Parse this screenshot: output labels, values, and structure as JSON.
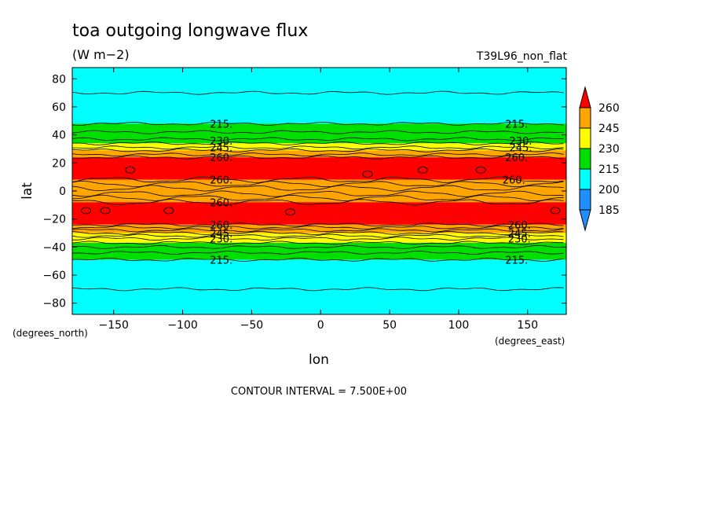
{
  "chart_data": {
    "type": "heatmap",
    "title": "toa outgoing longwave flux",
    "units": "(W m−2)",
    "run_label": "T39L96_non_flat",
    "xlabel": "lon",
    "ylabel": "lat",
    "x_unit_label": "(degrees_east)",
    "y_unit_label": "(degrees_north)",
    "xlim": [
      -180,
      178
    ],
    "ylim": [
      -88,
      88
    ],
    "x_ticks": [
      -150,
      -100,
      -50,
      0,
      50,
      100,
      150
    ],
    "y_ticks": [
      80,
      60,
      40,
      20,
      0,
      -20,
      -40,
      -60,
      -80
    ],
    "contour_interval_text": "CONTOUR INTERVAL = 7.500E+00",
    "colorbar": {
      "levels": [
        185,
        200,
        215,
        230,
        245,
        260
      ],
      "colors": [
        "#1e90ff",
        "#00ffff",
        "#00e000",
        "#ffff00",
        "#ffa500",
        "#ff0000"
      ],
      "under_color": "#1e90ff",
      "over_color": "#ff0000"
    },
    "bands": [
      {
        "lat_from": 88,
        "lat_to": 48,
        "value_range": "200-215",
        "color": "#00ffff"
      },
      {
        "lat_from": 48,
        "lat_to": 34,
        "value_range": "215-230",
        "color": "#00e000"
      },
      {
        "lat_from": 34,
        "lat_to": 29,
        "value_range": "230-245",
        "color": "#ffff00"
      },
      {
        "lat_from": 29,
        "lat_to": 24,
        "value_range": "245-260",
        "color": "#ffa500"
      },
      {
        "lat_from": 24,
        "lat_to": 8,
        "value_range": ">260",
        "color": "#ff0000"
      },
      {
        "lat_from": 8,
        "lat_to": -8,
        "value_range": "245-260",
        "color": "#ffa500"
      },
      {
        "lat_from": -8,
        "lat_to": -24,
        "value_range": ">260",
        "color": "#ff0000"
      },
      {
        "lat_from": -24,
        "lat_to": -30,
        "value_range": "245-260",
        "color": "#ffa500"
      },
      {
        "lat_from": -30,
        "lat_to": -37,
        "value_range": "230-245",
        "color": "#ffff00"
      },
      {
        "lat_from": -37,
        "lat_to": -49,
        "value_range": "215-230",
        "color": "#00e000"
      },
      {
        "lat_from": -49,
        "lat_to": -88,
        "value_range": "200-215",
        "color": "#00ffff"
      }
    ],
    "contour_lines_lat": [
      70,
      48,
      42,
      37,
      34,
      31,
      29,
      26,
      24,
      8,
      5,
      2,
      -2,
      -5,
      -8,
      -24,
      -26,
      -28,
      -30,
      -32,
      -34,
      -37,
      -40,
      -44,
      -49,
      -70
    ],
    "contour_labels": [
      {
        "text": "215.",
        "lon": -72,
        "lat": 48
      },
      {
        "text": "230.",
        "lon": -72,
        "lat": 36
      },
      {
        "text": "245.",
        "lon": -72,
        "lat": 31
      },
      {
        "text": "260.",
        "lon": -72,
        "lat": 24
      },
      {
        "text": "260.",
        "lon": -72,
        "lat": 8
      },
      {
        "text": "260.",
        "lon": -72,
        "lat": -8
      },
      {
        "text": "260.",
        "lon": -72,
        "lat": -24
      },
      {
        "text": "245.",
        "lon": -72,
        "lat": -30
      },
      {
        "text": "230.",
        "lon": -72,
        "lat": -34
      },
      {
        "text": "215.",
        "lon": -72,
        "lat": -49
      },
      {
        "text": "215.",
        "lon": 142,
        "lat": 48
      },
      {
        "text": "230.",
        "lon": 145,
        "lat": 36
      },
      {
        "text": "245.",
        "lon": 145,
        "lat": 31
      },
      {
        "text": "260.",
        "lon": 142,
        "lat": 24
      },
      {
        "text": "260.",
        "lon": 140,
        "lat": 8
      },
      {
        "text": "260.",
        "lon": 144,
        "lat": -24
      },
      {
        "text": "245.",
        "lon": 144,
        "lat": -30
      },
      {
        "text": "230.",
        "lon": 144,
        "lat": -34
      },
      {
        "text": "215.",
        "lon": 142,
        "lat": -49
      }
    ],
    "closed_contours": [
      {
        "lon": -138,
        "lat": 15
      },
      {
        "lon": 34,
        "lat": 12
      },
      {
        "lon": 74,
        "lat": 15
      },
      {
        "lon": 116,
        "lat": 15
      },
      {
        "lon": -170,
        "lat": -14
      },
      {
        "lon": -156,
        "lat": -14
      },
      {
        "lon": -110,
        "lat": -14
      },
      {
        "lon": -22,
        "lat": -15
      },
      {
        "lon": 170,
        "lat": -14
      }
    ]
  }
}
